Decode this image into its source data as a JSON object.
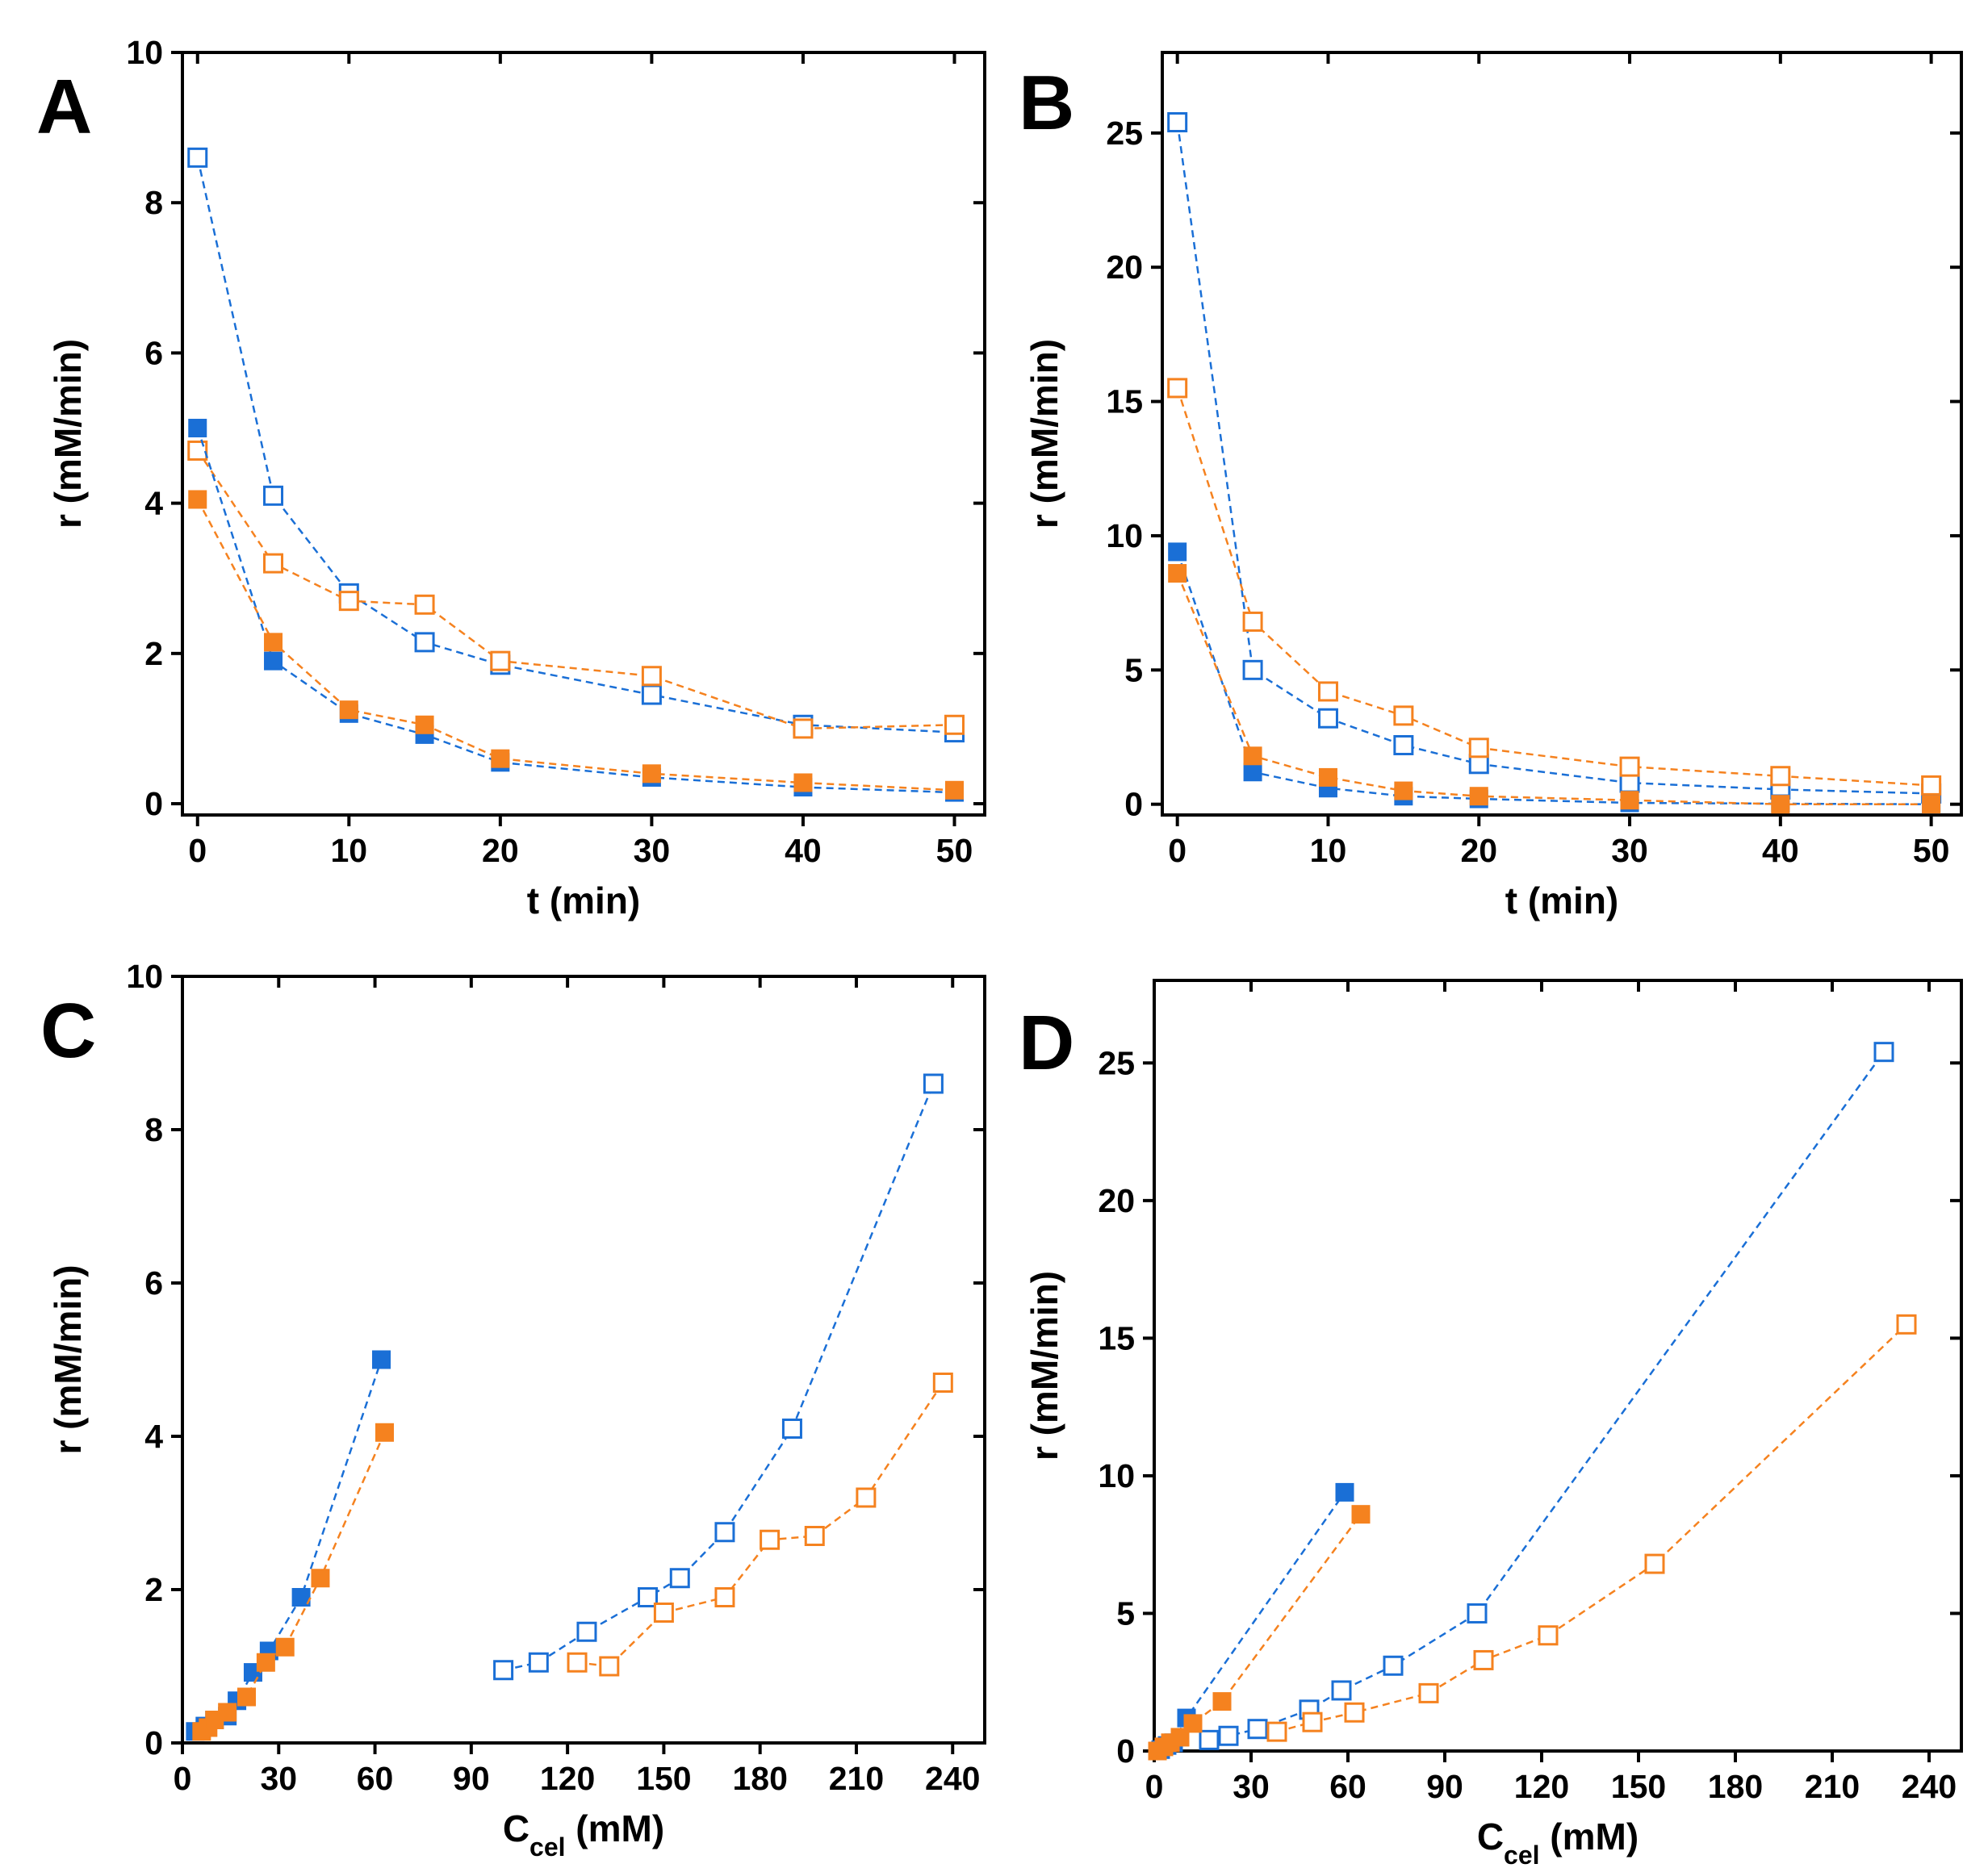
{
  "colors": {
    "blue": "#1a6fd6",
    "orange": "#f5821f",
    "axis": "#000000"
  },
  "chart_data": [
    {
      "panel": "A",
      "type": "scatter",
      "title": "",
      "xlabel": "t (min)",
      "ylabel": "r (mM/min)",
      "xlim": [
        -1,
        52
      ],
      "ylim": [
        -0.15,
        10
      ],
      "xticks": [
        0,
        10,
        20,
        30,
        40,
        50
      ],
      "yticks": [
        0,
        2,
        4,
        6,
        8,
        10
      ],
      "series": [
        {
          "name": "blue open",
          "color": "blue",
          "filled": false,
          "x": [
            0,
            5,
            10,
            15,
            20,
            30,
            40,
            50
          ],
          "y": [
            8.6,
            4.1,
            2.8,
            2.15,
            1.85,
            1.45,
            1.05,
            0.95
          ]
        },
        {
          "name": "orange open",
          "color": "orange",
          "filled": false,
          "x": [
            0,
            5,
            10,
            15,
            20,
            30,
            40,
            50
          ],
          "y": [
            4.7,
            3.2,
            2.7,
            2.65,
            1.9,
            1.7,
            1.0,
            1.05
          ]
        },
        {
          "name": "blue filled",
          "color": "blue",
          "filled": true,
          "x": [
            0,
            5,
            10,
            15,
            20,
            30,
            40,
            50
          ],
          "y": [
            5.0,
            1.9,
            1.2,
            0.92,
            0.55,
            0.35,
            0.22,
            0.15
          ]
        },
        {
          "name": "orange filled",
          "color": "orange",
          "filled": true,
          "x": [
            0,
            5,
            10,
            15,
            20,
            30,
            40,
            50
          ],
          "y": [
            4.05,
            2.15,
            1.25,
            1.05,
            0.6,
            0.4,
            0.28,
            0.18
          ]
        }
      ]
    },
    {
      "panel": "B",
      "type": "scatter",
      "title": "",
      "xlabel": "t (min)",
      "ylabel": "r (mM/min)",
      "xlim": [
        -1,
        52
      ],
      "ylim": [
        -0.4,
        28
      ],
      "xticks": [
        0,
        10,
        20,
        30,
        40,
        50
      ],
      "yticks": [
        0,
        5,
        10,
        15,
        20,
        25
      ],
      "series": [
        {
          "name": "blue open",
          "color": "blue",
          "filled": false,
          "x": [
            0,
            5,
            10,
            15,
            20,
            30,
            40,
            50
          ],
          "y": [
            25.4,
            5.0,
            3.2,
            2.2,
            1.5,
            0.8,
            0.55,
            0.4
          ]
        },
        {
          "name": "orange open",
          "color": "orange",
          "filled": false,
          "x": [
            0,
            5,
            10,
            15,
            20,
            30,
            40,
            50
          ],
          "y": [
            15.5,
            6.8,
            4.2,
            3.3,
            2.1,
            1.4,
            1.05,
            0.7
          ]
        },
        {
          "name": "blue filled",
          "color": "blue",
          "filled": true,
          "x": [
            0,
            5,
            10,
            15,
            20,
            30,
            40,
            50
          ],
          "y": [
            9.4,
            1.2,
            0.6,
            0.3,
            0.2,
            0.05,
            0.02,
            0.0
          ]
        },
        {
          "name": "orange filled",
          "color": "orange",
          "filled": true,
          "x": [
            0,
            5,
            10,
            15,
            20,
            30,
            40,
            50
          ],
          "y": [
            8.6,
            1.8,
            1.0,
            0.5,
            0.3,
            0.15,
            0.0,
            0.0
          ]
        }
      ]
    },
    {
      "panel": "C",
      "type": "scatter",
      "title": "",
      "xlabel": "C",
      "xlabel_sub": "cel",
      "xlabel_suffix": " (mM)",
      "ylabel": "r (mM/min)",
      "xlim": [
        0,
        250
      ],
      "ylim": [
        0,
        10
      ],
      "xticks": [
        0,
        30,
        60,
        90,
        120,
        150,
        180,
        210,
        240
      ],
      "yticks": [
        0,
        2,
        4,
        6,
        8,
        10
      ],
      "series": [
        {
          "name": "blue open",
          "color": "blue",
          "filled": false,
          "x": [
            100,
            111,
            126,
            145,
            155,
            169,
            190,
            234
          ],
          "y": [
            0.95,
            1.05,
            1.45,
            1.9,
            2.15,
            2.75,
            4.1,
            8.6
          ]
        },
        {
          "name": "orange open",
          "color": "orange",
          "filled": false,
          "x": [
            123,
            133,
            150,
            169,
            183,
            197,
            213,
            237
          ],
          "y": [
            1.05,
            1.0,
            1.7,
            1.9,
            2.65,
            2.7,
            3.2,
            4.7
          ]
        },
        {
          "name": "blue filled",
          "color": "blue",
          "filled": true,
          "x": [
            4,
            7,
            10,
            14,
            17,
            22,
            27,
            37,
            62
          ],
          "y": [
            0.15,
            0.22,
            0.3,
            0.35,
            0.55,
            0.92,
            1.2,
            1.9,
            5.0
          ]
        },
        {
          "name": "orange filled",
          "color": "orange",
          "filled": true,
          "x": [
            6,
            8,
            10,
            14,
            20,
            26,
            32,
            43,
            63
          ],
          "y": [
            0.15,
            0.2,
            0.3,
            0.4,
            0.6,
            1.05,
            1.25,
            2.15,
            4.05
          ]
        }
      ]
    },
    {
      "panel": "D",
      "type": "scatter",
      "title": "",
      "xlabel": "C",
      "xlabel_sub": "cel",
      "xlabel_suffix": " (mM)",
      "ylabel": "r (mM/min)",
      "xlim": [
        0,
        250
      ],
      "ylim": [
        0,
        28
      ],
      "xticks": [
        0,
        30,
        60,
        90,
        120,
        150,
        180,
        210,
        240
      ],
      "yticks": [
        0,
        5,
        10,
        15,
        20,
        25
      ],
      "series": [
        {
          "name": "blue open",
          "color": "blue",
          "filled": false,
          "x": [
            17,
            23,
            32,
            48,
            58,
            74,
            100,
            226
          ],
          "y": [
            0.4,
            0.55,
            0.8,
            1.5,
            2.2,
            3.1,
            5.0,
            25.4
          ]
        },
        {
          "name": "orange open",
          "color": "orange",
          "filled": false,
          "x": [
            38,
            49,
            62,
            85,
            102,
            122,
            155,
            233
          ],
          "y": [
            0.7,
            1.05,
            1.4,
            2.1,
            3.3,
            4.2,
            6.8,
            15.5
          ]
        },
        {
          "name": "blue filled",
          "color": "blue",
          "filled": true,
          "x": [
            2,
            4,
            6,
            10,
            59
          ],
          "y": [
            0.05,
            0.2,
            0.3,
            1.2,
            9.4
          ]
        },
        {
          "name": "orange filled",
          "color": "orange",
          "filled": true,
          "x": [
            1,
            3,
            5,
            8,
            12,
            21,
            64
          ],
          "y": [
            0.0,
            0.15,
            0.3,
            0.5,
            1.0,
            1.8,
            8.6
          ]
        }
      ]
    }
  ]
}
